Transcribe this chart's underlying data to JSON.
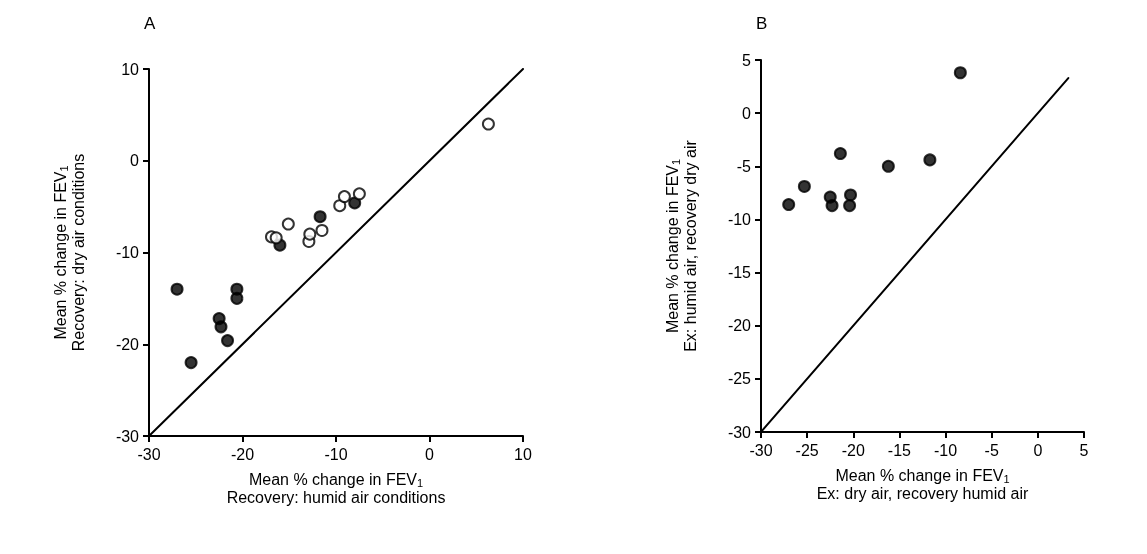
{
  "chart_data": [
    {
      "type": "scatter",
      "title": "A",
      "xlabel": "Mean % change in FEV$_{1}$\nRecovery: humid air conditions",
      "ylabel": "Mean % change in FEV$_{1}$\nRecovery: dry air conditions",
      "xlim": [
        -30,
        10
      ],
      "ylim": [
        -30,
        10
      ],
      "xticks": [
        -30,
        -20,
        -10,
        0,
        10
      ],
      "yticks": [
        -30,
        -20,
        -10,
        0,
        10
      ],
      "marker": "circle",
      "series": [
        {
          "type": "line",
          "color": "#000000",
          "marker": "none",
          "x": [
            -30,
            10
          ],
          "values": [
            -30,
            10
          ]
        },
        {
          "color": "#000000",
          "x": [
            -27.0,
            -25.5,
            -22.5,
            -22.3,
            -21.6,
            -20.6,
            -20.6,
            -16.0,
            -11.7,
            -8.0
          ],
          "values": [
            -14.0,
            -22.0,
            -17.2,
            -18.1,
            -19.6,
            -14.0,
            -15.0,
            -9.2,
            -6.1,
            -4.6
          ]
        },
        {
          "color": "#ffffff",
          "x": [
            -16.9,
            -16.4,
            -15.1,
            -12.9,
            -12.8,
            -11.5,
            -9.6,
            -9.1,
            -7.5,
            6.3
          ],
          "values": [
            -8.3,
            -8.4,
            -6.9,
            -8.8,
            -8.0,
            -7.6,
            -4.9,
            -3.9,
            -3.6,
            4.0
          ]
        }
      ]
    },
    {
      "type": "scatter",
      "title": "B",
      "xlabel": "Mean % change in FEV$_{1}$\nEx: dry air, recovery humid air",
      "ylabel": "Mean % change in FEV$_{1}$\nEx: humid air, recovery dry air",
      "xlim": [
        -30,
        5
      ],
      "ylim": [
        -30,
        5
      ],
      "xticks": [
        -30,
        -25,
        -20,
        -15,
        -10,
        -5,
        0,
        5
      ],
      "yticks": [
        -30,
        -25,
        -20,
        -15,
        -10,
        -5,
        0,
        5
      ],
      "marker": "circle",
      "series": [
        {
          "type": "line",
          "color": "#000000",
          "marker": "none",
          "x": [
            -30,
            3.3
          ],
          "values": [
            -30,
            3.3
          ]
        },
        {
          "color": "#000000",
          "x": [
            -27.0,
            -25.3,
            -22.5,
            -22.3,
            -21.4,
            -20.3,
            -20.4,
            -16.2,
            -11.7,
            -8.4
          ],
          "values": [
            -8.6,
            -6.9,
            -7.9,
            -8.7,
            -3.8,
            -7.7,
            -8.7,
            -5.0,
            -4.4,
            3.8
          ]
        }
      ]
    }
  ]
}
